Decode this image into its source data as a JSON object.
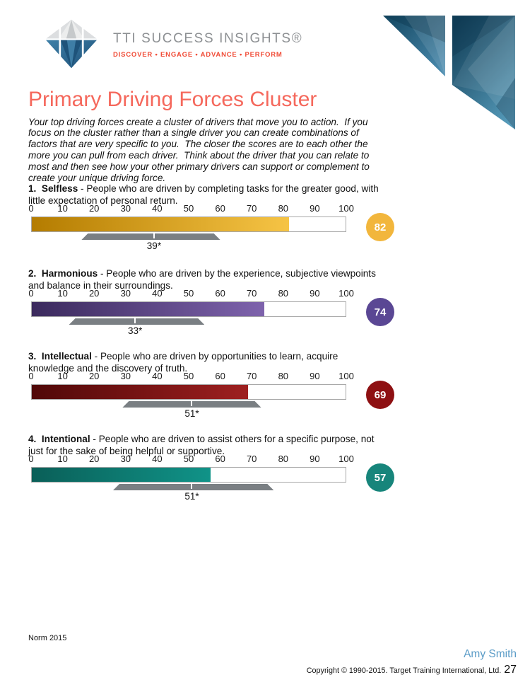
{
  "header": {
    "brand": "TTI SUCCESS INSIGHTS®",
    "tagline": "DISCOVER • ENGAGE • ADVANCE • PERFORM"
  },
  "page": {
    "title": "Primary Driving Forces Cluster",
    "intro": "Your top driving forces create a cluster of drivers that move you to action.  If you focus on the cluster rather than a single driver you can create combinations of factors that are very specific to you.  The closer the scores are to each other the more you can pull from each driver.  Think about the driver that you can relate to most and then see how your other primary drivers can support or complement to create your unique driving force."
  },
  "scale": {
    "min": 0,
    "max": 100,
    "ticks": [
      0,
      10,
      20,
      30,
      40,
      50,
      60,
      70,
      80,
      90,
      100
    ]
  },
  "drivers": [
    {
      "heading_bold": "1.  Selfless",
      "heading_rest": " - People who are driven by completing tasks for the greater good, with little expectation of personal return.",
      "value": 82,
      "norm": 39,
      "norm_label": "39*",
      "norm_band": [
        16,
        60
      ],
      "colors": {
        "bar_start": "#B47C00",
        "bar_end": "#F6C445",
        "badge": "#F2B63C"
      }
    },
    {
      "heading_bold": "2.  Harmonious",
      "heading_rest": " - People who are driven by the experience, subjective viewpoints and balance in their surroundings.",
      "value": 74,
      "norm": 33,
      "norm_label": "33*",
      "norm_band": [
        12,
        55
      ],
      "colors": {
        "bar_start": "#3B2A5D",
        "bar_end": "#7E63AC",
        "badge": "#5A4794"
      }
    },
    {
      "heading_bold": "3.  Intellectual",
      "heading_rest": " - People who are driven by opportunities to learn, acquire knowledge and the discovery of truth.",
      "value": 69,
      "norm": 51,
      "norm_label": "51*",
      "norm_band": [
        29,
        73
      ],
      "colors": {
        "bar_start": "#500808",
        "bar_end": "#9E2020",
        "badge": "#8E1012"
      }
    },
    {
      "heading_bold": "4.  Intentional",
      "heading_rest": " - People who are driven to assist others for a specific purpose, not just for the sake of being helpful or supportive.",
      "value": 57,
      "norm": 51,
      "norm_label": "51*",
      "norm_band": [
        26,
        77
      ],
      "colors": {
        "bar_start": "#0A5F58",
        "bar_end": "#109388",
        "badge": "#17857B"
      }
    }
  ],
  "footer": {
    "norm_note": "Norm 2015",
    "person": "Amy Smith",
    "copyright": "Copyright © 1990-2015. Target Training International, Ltd.",
    "page_number": "27"
  },
  "chart_data": [
    {
      "type": "bar",
      "orientation": "horizontal",
      "title": "Selfless",
      "value": 82,
      "norm_mean": 39,
      "norm_band": [
        16,
        60
      ],
      "xlim": [
        0,
        100
      ],
      "ticks": [
        0,
        10,
        20,
        30,
        40,
        50,
        60,
        70,
        80,
        90,
        100
      ]
    },
    {
      "type": "bar",
      "orientation": "horizontal",
      "title": "Harmonious",
      "value": 74,
      "norm_mean": 33,
      "norm_band": [
        12,
        55
      ],
      "xlim": [
        0,
        100
      ],
      "ticks": [
        0,
        10,
        20,
        30,
        40,
        50,
        60,
        70,
        80,
        90,
        100
      ]
    },
    {
      "type": "bar",
      "orientation": "horizontal",
      "title": "Intellectual",
      "value": 69,
      "norm_mean": 51,
      "norm_band": [
        29,
        73
      ],
      "xlim": [
        0,
        100
      ],
      "ticks": [
        0,
        10,
        20,
        30,
        40,
        50,
        60,
        70,
        80,
        90,
        100
      ]
    },
    {
      "type": "bar",
      "orientation": "horizontal",
      "title": "Intentional",
      "value": 57,
      "norm_mean": 51,
      "norm_band": [
        26,
        77
      ],
      "xlim": [
        0,
        100
      ],
      "ticks": [
        0,
        10,
        20,
        30,
        40,
        50,
        60,
        70,
        80,
        90,
        100
      ]
    }
  ]
}
